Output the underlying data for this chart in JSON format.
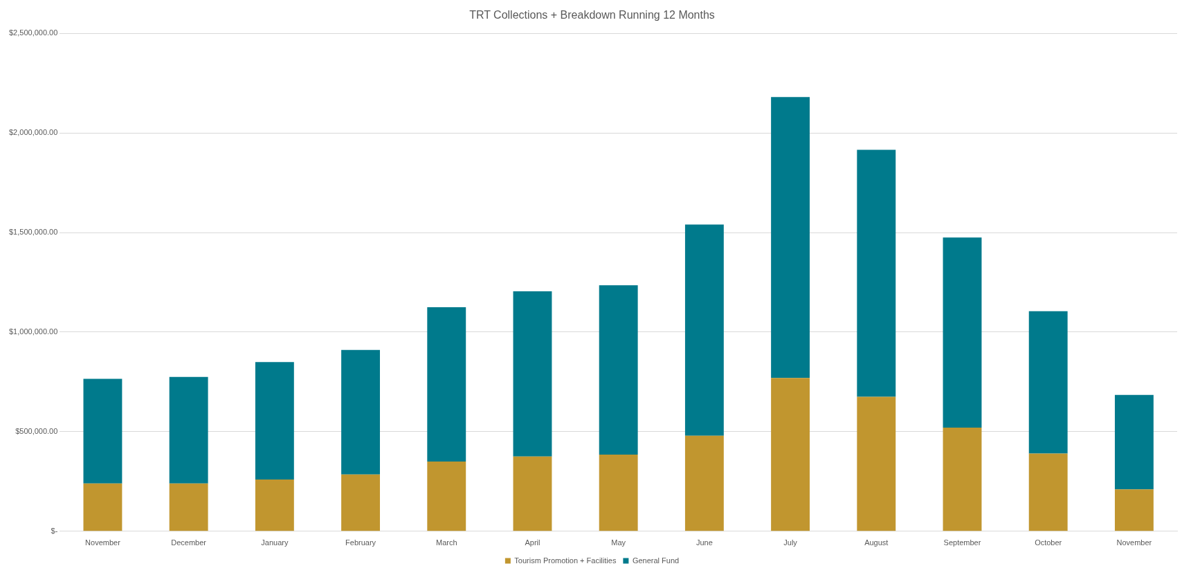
{
  "chart_data": {
    "type": "bar",
    "title": "TRT Collections + Breakdown Running 12 Months",
    "stacked": true,
    "categories": [
      "November",
      "December",
      "January",
      "February",
      "March",
      "April",
      "May",
      "June",
      "July",
      "August",
      "September",
      "October",
      "November"
    ],
    "series": [
      {
        "name": "Tourism Promotion + Facilities",
        "color": "#c1962f",
        "values": [
          240000,
          240000,
          260000,
          285000,
          350000,
          375000,
          385000,
          480000,
          770000,
          675000,
          520000,
          390000,
          210000
        ]
      },
      {
        "name": "General Fund",
        "color": "#007a8c",
        "values": [
          525000,
          535000,
          590000,
          625000,
          775000,
          830000,
          850000,
          1060000,
          1410000,
          1240000,
          955000,
          715000,
          475000
        ]
      }
    ],
    "ylim": [
      0,
      2500000
    ],
    "yticks": [
      {
        "value": 0,
        "label": "$-"
      },
      {
        "value": 500000,
        "label": "$500,000.00"
      },
      {
        "value": 1000000,
        "label": "$1,000,000.00"
      },
      {
        "value": 1500000,
        "label": "$1,500,000.00"
      },
      {
        "value": 2000000,
        "label": "$2,000,000.00"
      },
      {
        "value": 2500000,
        "label": "$2,500,000.00"
      }
    ],
    "grid": "y",
    "legend": "bottom"
  }
}
